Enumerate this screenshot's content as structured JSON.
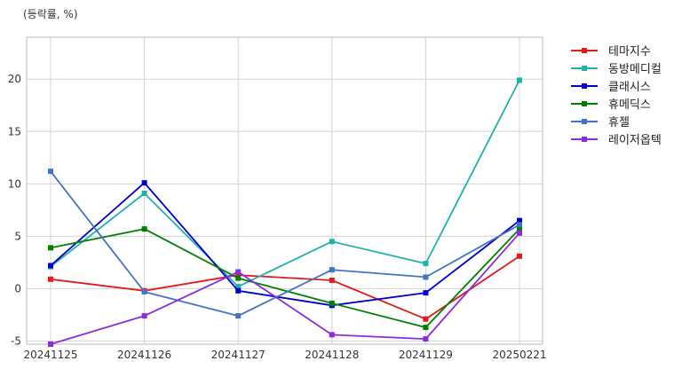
{
  "chart_data": {
    "type": "line",
    "title": "",
    "unit_label": "(등락률, %)",
    "xlabel": "",
    "ylabel": "",
    "categories": [
      "20241125",
      "20241126",
      "20241127",
      "20241128",
      "20241129",
      "20250221"
    ],
    "ylim": [
      -5.3,
      24
    ],
    "yticks": [
      -5,
      0,
      5,
      10,
      15,
      20
    ],
    "grid": true,
    "legend_position": "right-top",
    "series": [
      {
        "name": "테마지수",
        "color": "#e31a1c",
        "values": [
          0.9,
          -0.2,
          1.3,
          0.8,
          -2.9,
          3.1
        ]
      },
      {
        "name": "동방메디컬",
        "color": "#20b2aa",
        "values": [
          2.1,
          9.1,
          0.2,
          4.5,
          2.4,
          19.9
        ]
      },
      {
        "name": "클래시스",
        "color": "#0000cd",
        "values": [
          2.2,
          10.1,
          -0.2,
          -1.6,
          -0.4,
          6.5
        ]
      },
      {
        "name": "휴메딕스",
        "color": "#008000",
        "values": [
          3.9,
          5.7,
          1.0,
          -1.4,
          -3.7,
          5.7
        ]
      },
      {
        "name": "휴젤",
        "color": "#4472c4",
        "values": [
          11.2,
          -0.3,
          -2.6,
          1.8,
          1.1,
          6.1
        ]
      },
      {
        "name": "레이저옵텍",
        "color": "#8a2be2",
        "values": [
          -5.3,
          -2.6,
          1.6,
          -4.4,
          -4.8,
          5.3
        ]
      }
    ]
  }
}
